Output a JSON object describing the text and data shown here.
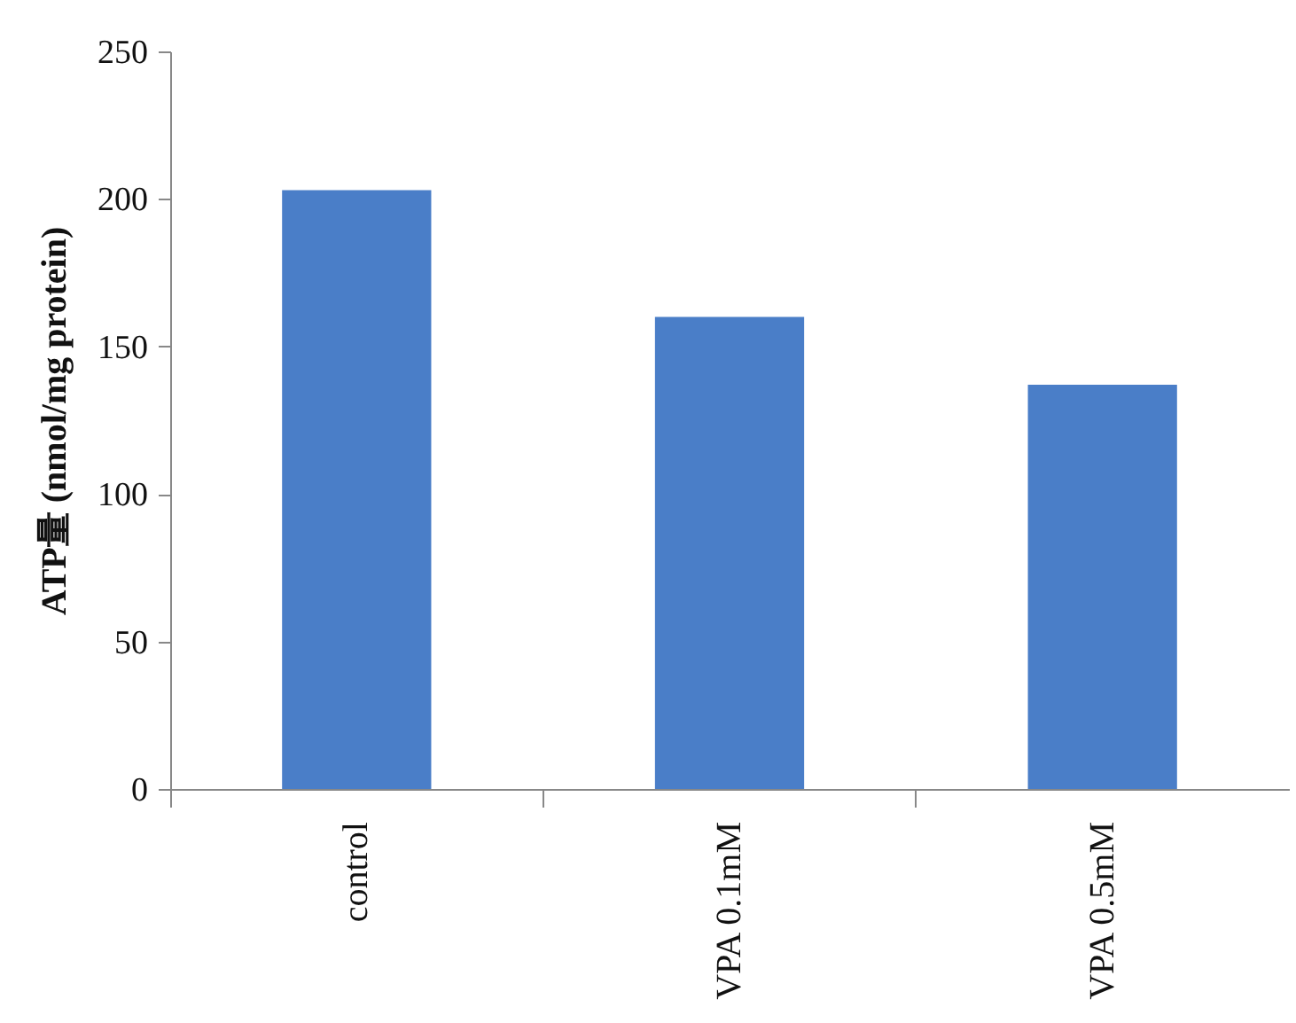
{
  "chart_data": {
    "type": "bar",
    "ylabel": "ATP量 (nmol/mg protein)",
    "categories": [
      "control",
      "VPA 0.1mM",
      "VPA 0.5mM"
    ],
    "values": [
      203,
      160,
      137
    ],
    "color": "#4a7ec8",
    "ylim": [
      0,
      250
    ],
    "yticks": [
      0,
      50,
      100,
      150,
      200,
      250
    ],
    "grid": false
  }
}
